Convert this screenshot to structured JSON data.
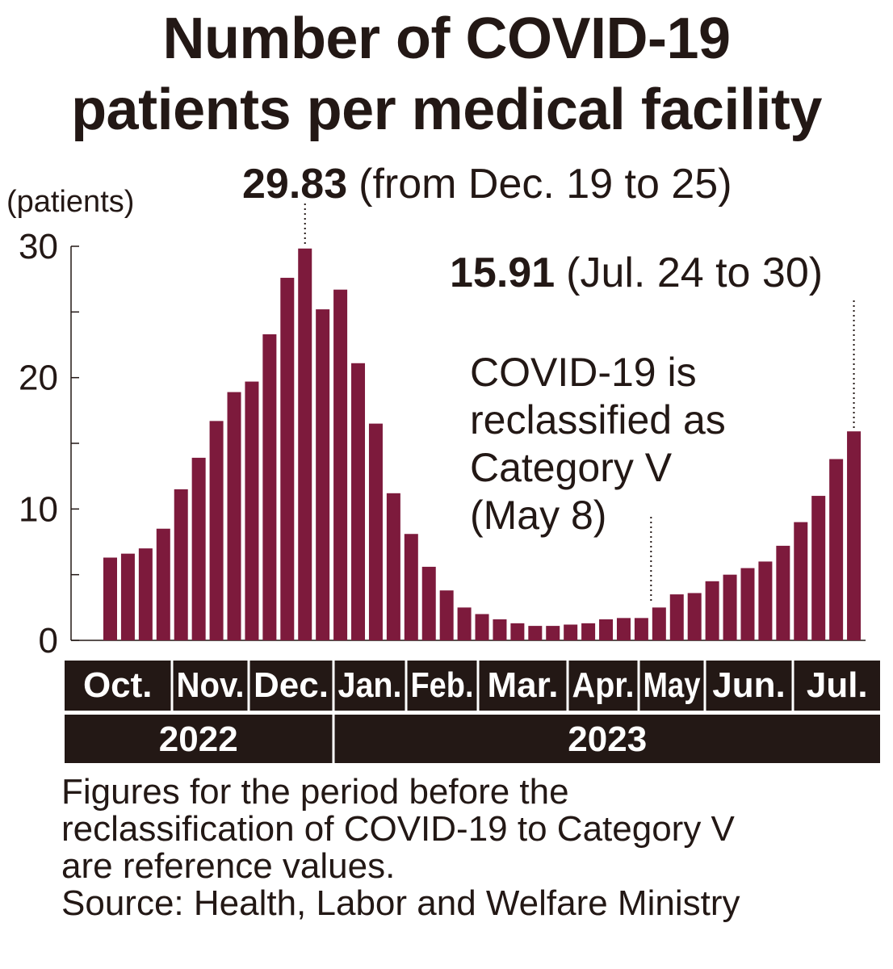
{
  "title_lines": [
    "Number of COVID-19",
    "patients per medical facility"
  ],
  "chart_data": {
    "type": "bar",
    "unit_label": "(patients)",
    "y_ticks": [
      0,
      10,
      20,
      30
    ],
    "ylim": [
      0,
      30
    ],
    "bar_color": "#7d1a3c",
    "values": [
      6.3,
      6.6,
      7.0,
      8.5,
      11.5,
      13.9,
      16.7,
      18.9,
      19.7,
      23.3,
      27.6,
      29.83,
      25.2,
      26.7,
      21.1,
      16.5,
      11.2,
      8.1,
      5.6,
      3.8,
      2.5,
      2.0,
      1.6,
      1.3,
      1.1,
      1.1,
      1.2,
      1.3,
      1.6,
      1.7,
      1.7,
      2.5,
      3.5,
      3.6,
      4.5,
      5.0,
      5.5,
      6.0,
      7.2,
      9.0,
      11.0,
      13.8,
      15.91
    ],
    "months": [
      "Oct.",
      "Nov.",
      "Dec.",
      "Jan.",
      "Feb.",
      "Mar.",
      "Apr.",
      "May",
      "Jun.",
      "Jul."
    ],
    "years": [
      "2022",
      "2023"
    ],
    "annotations": {
      "peak_value": "29.83",
      "peak_period": "(from Dec. 19 to 25)",
      "latest_value": "15.91",
      "latest_period": "(Jul. 24 to 30)",
      "reclass_lines": [
        "COVID-19 is",
        "reclassified as",
        "Category V",
        "(May 8)"
      ]
    }
  },
  "notes": [
    "Figures for the period before the",
    "reclassification of COVID-19 to Category V",
    "are reference values.",
    "Source: Health, Labor and Welfare Ministry"
  ]
}
